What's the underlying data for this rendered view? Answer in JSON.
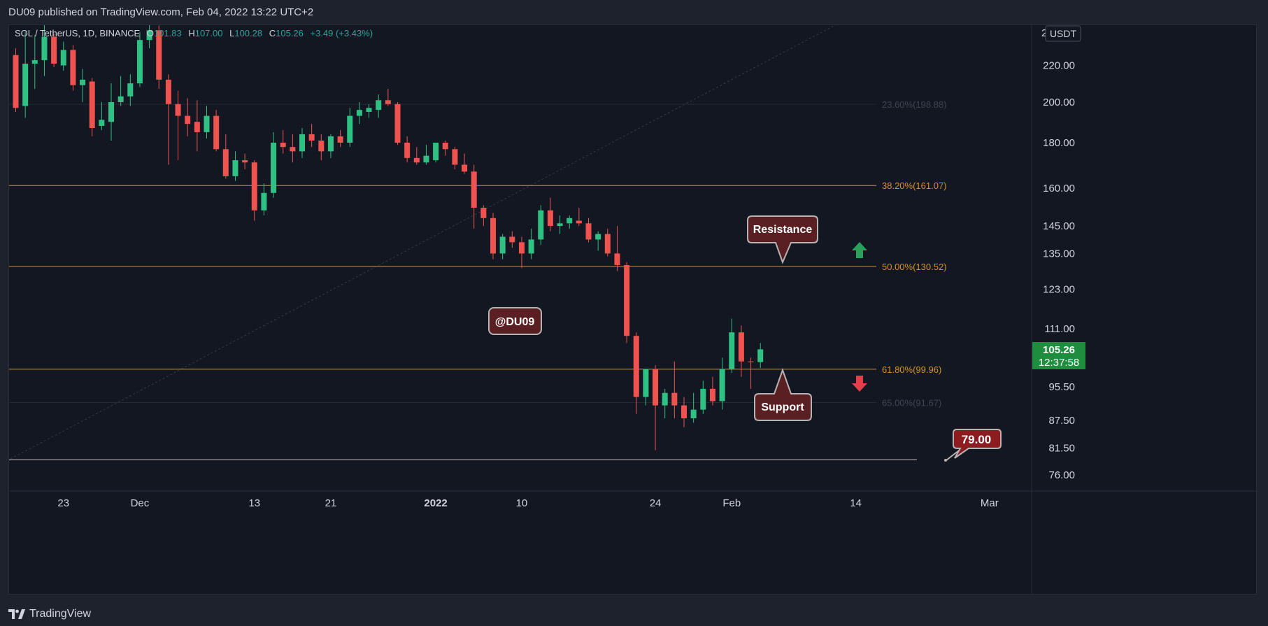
{
  "header": {
    "published": "DU09 published on TradingView.com, Feb 04, 2022 13:22 UTC+2"
  },
  "legend": {
    "symbol": "SOL / TetherUS, 1D, BINANCE",
    "open_label": "O",
    "open": "101.83",
    "high_label": "H",
    "high": "107.00",
    "low_label": "L",
    "low": "100.28",
    "close_label": "C",
    "close": "105.26",
    "change": "+3.49 (+3.43%)"
  },
  "price_axis": {
    "currency": "USDT",
    "top_partial": "2"
  },
  "last_price": {
    "value": "105.26",
    "countdown": "12:37:58"
  },
  "footer": {
    "brand": "TradingView"
  },
  "colors": {
    "up": "#26a69a",
    "up_body": "#2fc183",
    "down": "#ef5350",
    "fib": "#d39229",
    "support_line": "#c4c4c4",
    "callout_fill": "#5a1f22",
    "callout_border": "#b7b2b3",
    "target_fill": "#8c1c20",
    "last_price_bg": "#1e8e3e"
  },
  "chart_data": {
    "type": "candlestick",
    "title": "SOL / TetherUS, 1D, BINANCE",
    "scale": "log",
    "ylim": [
      72,
      245
    ],
    "y_ticks": [
      220,
      200,
      180,
      160,
      145,
      135,
      123,
      111,
      95.5,
      87.5,
      81.5,
      76
    ],
    "y_tick_labels": [
      "220.00",
      "200.00",
      "180.00",
      "160.00",
      "145.00",
      "135.00",
      "123.00",
      "111.00",
      "95.50",
      "87.50",
      "81.50",
      "76.00"
    ],
    "x_ticks": [
      {
        "label": "23",
        "day": 0
      },
      {
        "label": "Dec",
        "day": 8
      },
      {
        "label": "13",
        "day": 20
      },
      {
        "label": "21",
        "day": 28
      },
      {
        "label": "2022",
        "day": 39
      },
      {
        "label": "10",
        "day": 48
      },
      {
        "label": "24",
        "day": 62
      },
      {
        "label": "Feb",
        "day": 70
      },
      {
        "label": "14",
        "day": 83
      },
      {
        "label": "Mar",
        "day": 97
      }
    ],
    "x_tick_note": "day = trading day index counted from Nov 23, 2021",
    "candles": [
      {
        "date": "2021-11-18",
        "o": 226,
        "h": 230,
        "l": 195,
        "c": 197
      },
      {
        "date": "2021-11-19",
        "o": 198,
        "h": 240,
        "l": 192,
        "c": 221
      },
      {
        "date": "2021-11-20",
        "o": 221,
        "h": 238,
        "l": 207,
        "c": 223
      },
      {
        "date": "2021-11-21",
        "o": 223,
        "h": 245,
        "l": 214,
        "c": 237
      },
      {
        "date": "2021-11-22",
        "o": 237,
        "h": 239,
        "l": 219,
        "c": 221
      },
      {
        "date": "2021-11-23",
        "o": 220,
        "h": 234,
        "l": 217,
        "c": 229
      },
      {
        "date": "2021-11-24",
        "o": 229,
        "h": 232,
        "l": 206,
        "c": 209
      },
      {
        "date": "2021-11-25",
        "o": 209,
        "h": 218,
        "l": 200,
        "c": 212
      },
      {
        "date": "2021-11-26",
        "o": 211,
        "h": 213,
        "l": 183,
        "c": 187
      },
      {
        "date": "2021-11-27",
        "o": 188,
        "h": 200,
        "l": 186,
        "c": 191
      },
      {
        "date": "2021-11-28",
        "o": 190,
        "h": 210,
        "l": 181,
        "c": 200
      },
      {
        "date": "2021-11-29",
        "o": 200,
        "h": 214,
        "l": 198,
        "c": 203
      },
      {
        "date": "2021-11-30",
        "o": 203,
        "h": 215,
        "l": 198,
        "c": 210
      },
      {
        "date": "2021-12-01",
        "o": 210,
        "h": 240,
        "l": 208,
        "c": 235
      },
      {
        "date": "2021-12-02",
        "o": 235,
        "h": 247,
        "l": 230,
        "c": 241
      },
      {
        "date": "2021-12-03",
        "o": 241,
        "h": 244,
        "l": 207,
        "c": 212
      },
      {
        "date": "2021-12-04",
        "o": 212,
        "h": 215,
        "l": 170,
        "c": 199
      },
      {
        "date": "2021-12-05",
        "o": 199,
        "h": 206,
        "l": 172,
        "c": 193
      },
      {
        "date": "2021-12-06",
        "o": 193,
        "h": 202,
        "l": 183,
        "c": 189
      },
      {
        "date": "2021-12-07",
        "o": 190,
        "h": 201,
        "l": 176,
        "c": 185
      },
      {
        "date": "2021-12-08",
        "o": 185,
        "h": 198,
        "l": 182,
        "c": 193
      },
      {
        "date": "2021-12-09",
        "o": 193,
        "h": 196,
        "l": 176,
        "c": 177
      },
      {
        "date": "2021-12-10",
        "o": 177,
        "h": 184,
        "l": 164,
        "c": 165
      },
      {
        "date": "2021-12-11",
        "o": 165,
        "h": 176,
        "l": 163,
        "c": 172
      },
      {
        "date": "2021-12-12",
        "o": 172,
        "h": 175,
        "l": 168,
        "c": 171
      },
      {
        "date": "2021-12-13",
        "o": 171,
        "h": 172,
        "l": 147,
        "c": 151
      },
      {
        "date": "2021-12-14",
        "o": 151,
        "h": 162,
        "l": 149,
        "c": 158
      },
      {
        "date": "2021-12-15",
        "o": 158,
        "h": 185,
        "l": 156,
        "c": 180
      },
      {
        "date": "2021-12-16",
        "o": 180,
        "h": 186,
        "l": 175,
        "c": 178
      },
      {
        "date": "2021-12-17",
        "o": 178,
        "h": 184,
        "l": 171,
        "c": 176
      },
      {
        "date": "2021-12-18",
        "o": 176,
        "h": 187,
        "l": 173,
        "c": 184
      },
      {
        "date": "2021-12-19",
        "o": 184,
        "h": 189,
        "l": 178,
        "c": 181
      },
      {
        "date": "2021-12-20",
        "o": 181,
        "h": 184,
        "l": 172,
        "c": 176
      },
      {
        "date": "2021-12-21",
        "o": 176,
        "h": 184,
        "l": 173,
        "c": 183
      },
      {
        "date": "2021-12-22",
        "o": 183,
        "h": 186,
        "l": 178,
        "c": 180
      },
      {
        "date": "2021-12-23",
        "o": 180,
        "h": 197,
        "l": 178,
        "c": 193
      },
      {
        "date": "2021-12-24",
        "o": 193,
        "h": 200,
        "l": 189,
        "c": 196
      },
      {
        "date": "2021-12-25",
        "o": 195,
        "h": 199,
        "l": 192,
        "c": 197
      },
      {
        "date": "2021-12-26",
        "o": 196,
        "h": 204,
        "l": 192,
        "c": 201
      },
      {
        "date": "2021-12-27",
        "o": 201,
        "h": 207,
        "l": 198,
        "c": 199
      },
      {
        "date": "2021-12-28",
        "o": 199,
        "h": 200,
        "l": 179,
        "c": 180
      },
      {
        "date": "2021-12-29",
        "o": 180,
        "h": 183,
        "l": 171,
        "c": 173
      },
      {
        "date": "2021-12-30",
        "o": 173,
        "h": 178,
        "l": 170,
        "c": 171
      },
      {
        "date": "2021-12-31",
        "o": 171,
        "h": 179,
        "l": 170,
        "c": 174
      },
      {
        "date": "2022-01-01",
        "o": 172,
        "h": 180,
        "l": 171,
        "c": 180
      },
      {
        "date": "2022-01-02",
        "o": 180,
        "h": 181,
        "l": 174,
        "c": 177
      },
      {
        "date": "2022-01-03",
        "o": 177,
        "h": 178,
        "l": 168,
        "c": 170
      },
      {
        "date": "2022-01-04",
        "o": 170,
        "h": 175,
        "l": 166,
        "c": 167
      },
      {
        "date": "2022-01-05",
        "o": 167,
        "h": 170,
        "l": 144,
        "c": 152
      },
      {
        "date": "2022-01-06",
        "o": 152,
        "h": 153,
        "l": 145,
        "c": 148
      },
      {
        "date": "2022-01-07",
        "o": 148,
        "h": 150,
        "l": 133,
        "c": 135
      },
      {
        "date": "2022-01-08",
        "o": 135,
        "h": 142,
        "l": 133,
        "c": 141
      },
      {
        "date": "2022-01-09",
        "o": 141,
        "h": 143,
        "l": 137,
        "c": 139
      },
      {
        "date": "2022-01-10",
        "o": 139,
        "h": 141,
        "l": 130,
        "c": 135
      },
      {
        "date": "2022-01-11",
        "o": 135,
        "h": 144,
        "l": 133,
        "c": 140
      },
      {
        "date": "2022-01-12",
        "o": 140,
        "h": 153,
        "l": 138,
        "c": 151
      },
      {
        "date": "2022-01-13",
        "o": 151,
        "h": 156,
        "l": 143,
        "c": 145
      },
      {
        "date": "2022-01-14",
        "o": 145,
        "h": 149,
        "l": 142,
        "c": 146
      },
      {
        "date": "2022-01-15",
        "o": 146,
        "h": 149,
        "l": 144,
        "c": 148
      },
      {
        "date": "2022-01-16",
        "o": 147,
        "h": 152,
        "l": 145,
        "c": 146
      },
      {
        "date": "2022-01-17",
        "o": 146,
        "h": 148,
        "l": 139,
        "c": 140
      },
      {
        "date": "2022-01-18",
        "o": 140,
        "h": 143,
        "l": 136,
        "c": 142
      },
      {
        "date": "2022-01-19",
        "o": 142,
        "h": 144,
        "l": 134,
        "c": 135
      },
      {
        "date": "2022-01-20",
        "o": 135,
        "h": 145,
        "l": 129,
        "c": 131
      },
      {
        "date": "2022-01-21",
        "o": 131,
        "h": 132,
        "l": 107,
        "c": 109
      },
      {
        "date": "2022-01-22",
        "o": 109,
        "h": 110,
        "l": 89,
        "c": 93
      },
      {
        "date": "2022-01-23",
        "o": 93,
        "h": 100,
        "l": 91,
        "c": 100
      },
      {
        "date": "2022-01-24",
        "o": 100,
        "h": 101,
        "l": 81,
        "c": 91
      },
      {
        "date": "2022-01-25",
        "o": 91,
        "h": 95,
        "l": 88,
        "c": 94
      },
      {
        "date": "2022-01-26",
        "o": 94,
        "h": 102,
        "l": 88,
        "c": 91
      },
      {
        "date": "2022-01-27",
        "o": 91,
        "h": 93,
        "l": 86,
        "c": 88
      },
      {
        "date": "2022-01-28",
        "o": 88,
        "h": 94,
        "l": 87,
        "c": 90
      },
      {
        "date": "2022-01-29",
        "o": 90,
        "h": 97,
        "l": 89,
        "c": 95
      },
      {
        "date": "2022-01-30",
        "o": 95,
        "h": 98,
        "l": 91,
        "c": 92
      },
      {
        "date": "2022-01-31",
        "o": 92,
        "h": 103,
        "l": 90,
        "c": 100
      },
      {
        "date": "2022-02-01",
        "o": 100,
        "h": 114,
        "l": 99,
        "c": 110
      },
      {
        "date": "2022-02-02",
        "o": 110,
        "h": 112,
        "l": 98,
        "c": 102
      },
      {
        "date": "2022-02-03",
        "o": 102,
        "h": 103,
        "l": 95,
        "c": 101.83
      },
      {
        "date": "2022-02-04",
        "o": 101.83,
        "h": 107,
        "l": 100.28,
        "c": 105.26
      }
    ],
    "fib_levels": [
      {
        "label": "23.60%(198.88)",
        "price": 198.88,
        "faint": true
      },
      {
        "label": "38.20%(161.07)",
        "price": 161.07,
        "faint": false
      },
      {
        "label": "50.00%(130.52)",
        "price": 130.52,
        "faint": false
      },
      {
        "label": "61.80%(99.96)",
        "price": 99.96,
        "faint": false
      },
      {
        "label": "65.00%(91.67)",
        "price": 91.67,
        "faint": true
      }
    ],
    "support_line": {
      "price": 79
    },
    "annotations": [
      {
        "text": "Resistance",
        "type": "callout",
        "pointer": "down"
      },
      {
        "text": "Support",
        "type": "callout",
        "pointer": "up"
      },
      {
        "text": "@DU09",
        "type": "label"
      },
      {
        "text": "79.00",
        "type": "price-target"
      }
    ],
    "arrows": [
      {
        "direction": "up",
        "color": "#26a69a"
      },
      {
        "direction": "down",
        "color": "#ef5350"
      }
    ]
  }
}
